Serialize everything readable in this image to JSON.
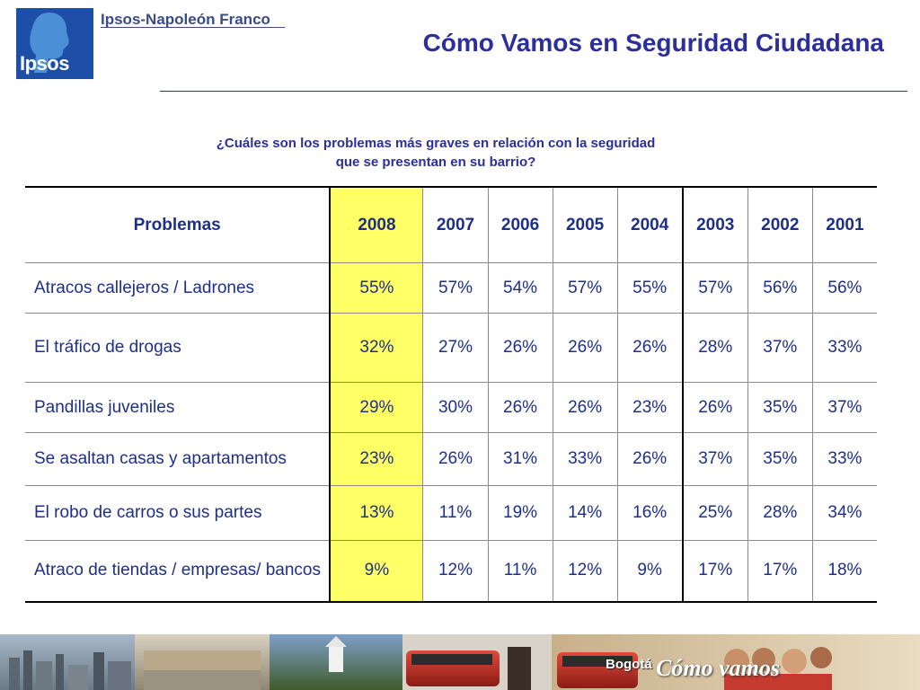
{
  "header": {
    "logo_text": "Ipsos",
    "brand_name": "Ipsos-Napoleón Franco",
    "title": "Cómo Vamos en Seguridad Ciudadana"
  },
  "question": {
    "line1": "¿Cuáles son los problemas más graves en relación con la seguridad",
    "line2": "que se presentan en su barrio?"
  },
  "table": {
    "header_label": "Problemas",
    "years": [
      "2008",
      "2007",
      "2006",
      "2005",
      "2004",
      "2003",
      "2002",
      "2001"
    ],
    "rows": [
      {
        "label": "Atracos callejeros / Ladrones",
        "values": [
          "55%",
          "57%",
          "54%",
          "57%",
          "55%",
          "57%",
          "56%",
          "56%"
        ]
      },
      {
        "label": "El tráfico de drogas",
        "values": [
          "32%",
          "27%",
          "26%",
          "26%",
          "26%",
          "28%",
          "37%",
          "33%"
        ]
      },
      {
        "label": "Pandillas juveniles",
        "values": [
          "29%",
          "30%",
          "26%",
          "26%",
          "23%",
          "26%",
          "35%",
          "37%"
        ]
      },
      {
        "label": "Se asaltan casas y apartamentos",
        "values": [
          "23%",
          "26%",
          "31%",
          "33%",
          "26%",
          "37%",
          "35%",
          "33%"
        ]
      },
      {
        "label": "El robo de carros o sus partes",
        "values": [
          "13%",
          "11%",
          "19%",
          "14%",
          "16%",
          "25%",
          "28%",
          "34%"
        ]
      },
      {
        "label": "Atraco de tiendas / empresas/ bancos",
        "values": [
          "9%",
          "12%",
          "11%",
          "12%",
          "9%",
          "17%",
          "17%",
          "18%"
        ]
      }
    ]
  },
  "footer": {
    "city_label": "Bogotá",
    "brand_label": "Cómo vamos"
  },
  "colors": {
    "accent_blue": "#2c2f9a",
    "highlight_yellow": "#ffff66",
    "logo_blue": "#1e4fa6"
  }
}
